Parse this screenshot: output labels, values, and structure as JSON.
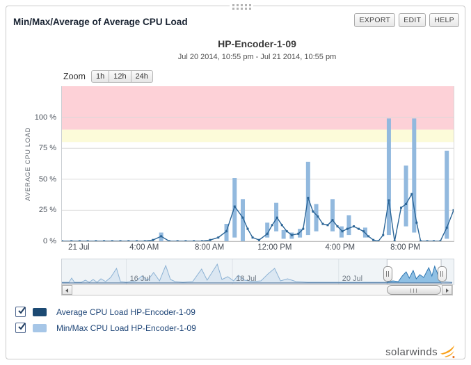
{
  "panel": {
    "title": "Min/Max/Average of Average CPU Load",
    "buttons": [
      {
        "label": "EXPORT"
      },
      {
        "label": "EDIT"
      },
      {
        "label": "HELP"
      }
    ]
  },
  "chart": {
    "title": "HP-Encoder-1-09",
    "subtitle": "Jul 20 2014, 10:55 pm - Jul 21 2014, 10:55 pm",
    "zoom": {
      "label": "Zoom",
      "options": [
        "1h",
        "12h",
        "24h"
      ]
    },
    "y_axis_title": "AVERAGE CPU LOAD"
  },
  "chart_data": {
    "type": "line+rangebar",
    "title": "HP-Encoder-1-09",
    "x_unit": "hours relative to Jul 21 2014 00:00",
    "x_range": [
      -1.083,
      22.917
    ],
    "ylim": [
      0,
      125
    ],
    "y_ticks": [
      {
        "pct": 0,
        "label": "0 %"
      },
      {
        "pct": 25,
        "label": "25 %"
      },
      {
        "pct": 50,
        "label": "50 %"
      },
      {
        "pct": 75,
        "label": "75 %"
      },
      {
        "pct": 100,
        "label": "100 %"
      }
    ],
    "x_ticks": [
      {
        "hour": 0,
        "label": "21 Jul"
      },
      {
        "hour": 4,
        "label": "4:00 AM"
      },
      {
        "hour": 8,
        "label": "8:00 AM"
      },
      {
        "hour": 12,
        "label": "12:00 PM"
      },
      {
        "hour": 16,
        "label": "4:00 PM"
      },
      {
        "hour": 20,
        "label": "8:00 PM"
      }
    ],
    "threshold_bands": [
      {
        "from": 80,
        "to": 90,
        "color": "#fcfbd9"
      },
      {
        "from": 90,
        "to": 125,
        "color": "#fdd1d7"
      }
    ],
    "grid_color": "#d9d9d9",
    "series": [
      {
        "name": "Average CPU Load HP-Encoder-1-09",
        "type": "line",
        "color": "#2a6496",
        "points": [
          [
            -1.08,
            0
          ],
          [
            -0.5,
            0
          ],
          [
            0,
            0
          ],
          [
            0.5,
            0
          ],
          [
            1,
            0
          ],
          [
            1.5,
            0
          ],
          [
            2,
            0
          ],
          [
            2.5,
            0
          ],
          [
            3,
            0
          ],
          [
            3.5,
            0
          ],
          [
            4,
            0
          ],
          [
            4.5,
            1
          ],
          [
            5,
            4
          ],
          [
            5.5,
            0
          ],
          [
            6,
            0
          ],
          [
            6.5,
            0
          ],
          [
            7,
            0
          ],
          [
            7.5,
            0
          ],
          [
            8,
            1
          ],
          [
            8.5,
            3
          ],
          [
            9,
            8
          ],
          [
            9.5,
            28
          ],
          [
            10,
            19
          ],
          [
            10.3,
            10
          ],
          [
            10.6,
            3
          ],
          [
            11,
            1
          ],
          [
            11.5,
            6
          ],
          [
            11.8,
            13
          ],
          [
            12.1,
            19
          ],
          [
            12.4,
            13
          ],
          [
            12.7,
            8
          ],
          [
            13,
            5
          ],
          [
            13.4,
            6
          ],
          [
            13.7,
            10
          ],
          [
            14,
            35
          ],
          [
            14.3,
            24
          ],
          [
            14.6,
            20
          ],
          [
            14.9,
            14
          ],
          [
            15.2,
            13
          ],
          [
            15.5,
            17
          ],
          [
            15.8,
            12
          ],
          [
            16.1,
            8
          ],
          [
            16.4,
            10
          ],
          [
            16.8,
            12
          ],
          [
            17.1,
            10
          ],
          [
            17.4,
            8
          ],
          [
            17.7,
            4
          ],
          [
            18,
            1
          ],
          [
            18.3,
            0
          ],
          [
            18.6,
            5
          ],
          [
            18.95,
            33
          ],
          [
            19.3,
            0
          ],
          [
            19.7,
            27
          ],
          [
            20,
            30
          ],
          [
            20.35,
            38
          ],
          [
            20.65,
            15
          ],
          [
            20.9,
            0
          ],
          [
            21.3,
            0
          ],
          [
            21.7,
            0
          ],
          [
            22.1,
            0
          ],
          [
            22.5,
            11
          ],
          [
            22.92,
            25
          ]
        ]
      },
      {
        "name": "Min/Max CPU Load HP-Encoder-1-09",
        "type": "rangebar",
        "color": "#92b9de",
        "points": [
          [
            5,
            0,
            7
          ],
          [
            9,
            0,
            14
          ],
          [
            9.5,
            3,
            51
          ],
          [
            10,
            0,
            34
          ],
          [
            11.5,
            3,
            15
          ],
          [
            12.05,
            8,
            31
          ],
          [
            12.5,
            2,
            9
          ],
          [
            13,
            2,
            7
          ],
          [
            13.5,
            3,
            10
          ],
          [
            14,
            5,
            64
          ],
          [
            14.5,
            8,
            30
          ],
          [
            15.5,
            8,
            34
          ],
          [
            16.05,
            3,
            12
          ],
          [
            16.5,
            5,
            21
          ],
          [
            17.5,
            3,
            11
          ],
          [
            18.95,
            5,
            99
          ],
          [
            20,
            12,
            61
          ],
          [
            20.5,
            7,
            99
          ],
          [
            22.5,
            2,
            73
          ]
        ]
      }
    ]
  },
  "navigator": {
    "day_ticks": [
      {
        "fx": 0.165,
        "label": "16 Jul"
      },
      {
        "fx": 0.437,
        "label": "18 Jul"
      },
      {
        "fx": 0.709,
        "label": "20 Jul"
      }
    ],
    "selection": {
      "from_fx": 0.833,
      "to_fx": 0.9716
    },
    "colors": {
      "bg": "#f0f4f7",
      "dim_fill": "#dbe7f2",
      "dim_stroke": "#8cb2d4",
      "sel_fill": "#8fc0e4",
      "sel_stroke": "#2f77b2",
      "baseline": "#3a618c"
    },
    "sparkline": [
      [
        0,
        1
      ],
      [
        0.018,
        1
      ],
      [
        0.025,
        7
      ],
      [
        0.032,
        1
      ],
      [
        0.05,
        1
      ],
      [
        0.06,
        4
      ],
      [
        0.07,
        1
      ],
      [
        0.08,
        5
      ],
      [
        0.09,
        1
      ],
      [
        0.1,
        6
      ],
      [
        0.112,
        2
      ],
      [
        0.125,
        8
      ],
      [
        0.14,
        21
      ],
      [
        0.15,
        2
      ],
      [
        0.165,
        1
      ],
      [
        0.19,
        3
      ],
      [
        0.205,
        10
      ],
      [
        0.22,
        4
      ],
      [
        0.235,
        15
      ],
      [
        0.25,
        3
      ],
      [
        0.266,
        25
      ],
      [
        0.278,
        5
      ],
      [
        0.29,
        2
      ],
      [
        0.31,
        1
      ],
      [
        0.335,
        2
      ],
      [
        0.358,
        20
      ],
      [
        0.372,
        4
      ],
      [
        0.398,
        27
      ],
      [
        0.41,
        5
      ],
      [
        0.425,
        9
      ],
      [
        0.44,
        3
      ],
      [
        0.452,
        11
      ],
      [
        0.468,
        4
      ],
      [
        0.49,
        2
      ],
      [
        0.51,
        3
      ],
      [
        0.528,
        13
      ],
      [
        0.545,
        21
      ],
      [
        0.56,
        3
      ],
      [
        0.578,
        6
      ],
      [
        0.6,
        2
      ],
      [
        0.63,
        1
      ],
      [
        0.66,
        1
      ],
      [
        0.7,
        1
      ],
      [
        0.75,
        1
      ],
      [
        0.8,
        1
      ],
      [
        0.833,
        1
      ],
      [
        0.848,
        3
      ],
      [
        0.862,
        2
      ],
      [
        0.872,
        10
      ],
      [
        0.882,
        16
      ],
      [
        0.89,
        7
      ],
      [
        0.9,
        18
      ],
      [
        0.908,
        6
      ],
      [
        0.917,
        12
      ],
      [
        0.927,
        8
      ],
      [
        0.94,
        22
      ],
      [
        0.948,
        10
      ],
      [
        0.955,
        24
      ],
      [
        0.962,
        14
      ],
      [
        0.968,
        3
      ],
      [
        0.975,
        15
      ],
      [
        0.982,
        2
      ],
      [
        1,
        1
      ]
    ]
  },
  "legend": {
    "items": [
      {
        "label": "Average CPU Load HP-Encoder-1-09",
        "swatch": "#1c4a73",
        "checked": true
      },
      {
        "label": "Min/Max CPU Load HP-Encoder-1-09",
        "swatch": "#a6c6e7",
        "checked": true
      }
    ]
  },
  "footer": {
    "brand": "solarwinds",
    "brand_color": "#f9a11b"
  }
}
